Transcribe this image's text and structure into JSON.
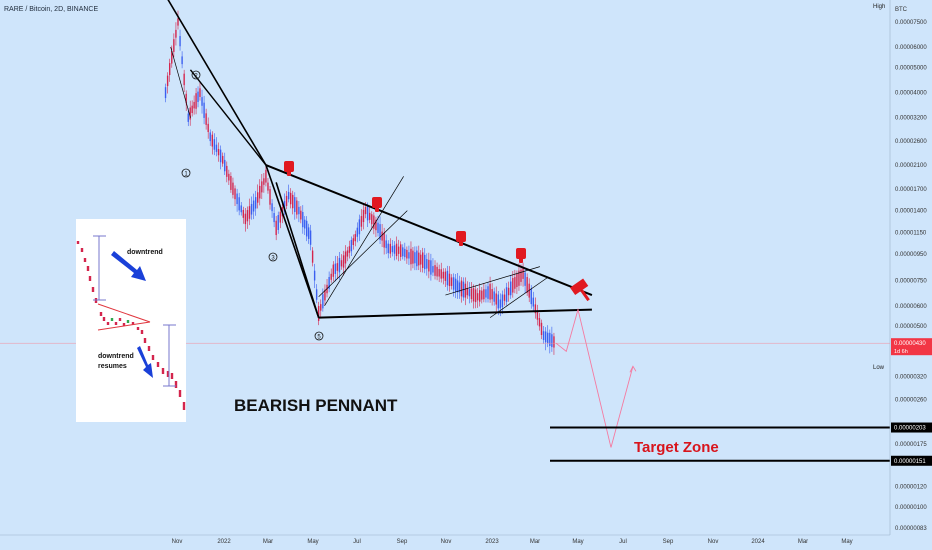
{
  "header": {
    "symbol_title": "RARE / Bitcoin, 2D, BINANCE"
  },
  "price_axis": {
    "currency": "BTC",
    "high_label": "High",
    "low_label": "Low",
    "ticks": [
      "0.00007500",
      "0.00006000",
      "0.00005000",
      "0.00004000",
      "0.00003200",
      "0.00002600",
      "0.00002100",
      "0.00001700",
      "0.00001400",
      "0.00001150",
      "0.00000950",
      "0.00000750",
      "0.00000600",
      "0.00000500",
      "0.00000396",
      "0.00000320",
      "0.00000260",
      "0.00000175",
      "0.00000120",
      "0.00000100",
      "0.00000083"
    ],
    "current_price_tag": "0.00000430",
    "current_price_timer": "1d 6h",
    "target_upper_tag": "0.00000203",
    "target_lower_tag": "0.00000151"
  },
  "time_axis": {
    "ticks": [
      "Nov",
      "2022",
      "Mar",
      "May",
      "Jul",
      "Sep",
      "Nov",
      "2023",
      "Mar",
      "May",
      "Jul",
      "Sep",
      "Nov",
      "2024",
      "Mar",
      "May"
    ]
  },
  "annotations": {
    "pattern_title": "BEARISH PENNANT",
    "target_zone": "Target Zone",
    "wave_labels": [
      "1",
      "2",
      "3",
      "4",
      "5"
    ]
  },
  "inset": {
    "label_top": "downtrend",
    "label_bottom_line1": "downtrend",
    "label_bottom_line2": "resumes"
  },
  "colors": {
    "background": "#cfe5fb",
    "candle_up": "#3a5ff0",
    "candle_down": "#d4254d",
    "price_tag_red": "#f23645",
    "pattern_lines": "#000000",
    "projection": "#f57aa0",
    "target_text": "#d8141c",
    "icon_red": "#e11920"
  },
  "chart_data": {
    "type": "candlestick",
    "title": "RARE / Bitcoin, 2D, BINANCE",
    "series": [
      {
        "name": "RARE/BTC",
        "x": [
          "2021-10-15",
          "2021-11-01",
          "2021-11-15",
          "2021-12-01",
          "2021-12-15",
          "2022-01-01",
          "2022-01-15",
          "2022-02-01",
          "2022-02-15",
          "2022-03-01",
          "2022-03-15",
          "2022-04-01",
          "2022-04-15",
          "2022-05-01",
          "2022-05-12",
          "2022-06-01",
          "2022-06-15",
          "2022-07-01",
          "2022-07-15",
          "2022-08-01",
          "2022-08-15",
          "2022-09-01",
          "2022-09-15",
          "2022-10-01",
          "2022-10-15",
          "2022-11-01",
          "2022-11-15",
          "2022-12-01",
          "2022-12-15",
          "2023-01-01",
          "2023-01-15",
          "2023-02-01",
          "2023-02-15",
          "2023-03-01",
          "2023-03-15",
          "2023-04-01"
        ],
        "y": [
          4e-05,
          7.5e-05,
          3.2e-05,
          4e-05,
          2.7e-05,
          2.2e-05,
          1.7e-05,
          1.3e-05,
          1.5e-05,
          1.9e-05,
          1.2e-05,
          1.6e-05,
          1.4e-05,
          1.1e-05,
          5.6e-06,
          8.2e-06,
          8.9e-06,
          1.1e-05,
          1.4e-05,
          1.2e-05,
          1e-05,
          9.8e-06,
          9.3e-06,
          9e-06,
          8.3e-06,
          7.8e-06,
          7.2e-06,
          6.8e-06,
          6.5e-06,
          6.8e-06,
          6.1e-06,
          7.2e-06,
          8e-06,
          6.2e-06,
          4.6e-06,
          4.3e-06
        ]
      }
    ],
    "projection": {
      "name": "Projected path",
      "x": [
        "2023-04-01",
        "2023-04-15",
        "2023-05-01",
        "2023-06-15",
        "2023-07-15"
      ],
      "y": [
        4.3e-06,
        4e-06,
        5.8e-06,
        1.7e-06,
        3.5e-06
      ]
    },
    "levels": {
      "pennant_upper": [
        [
          "2022-03-01",
          2.1e-05
        ],
        [
          "2023-05-20",
          6.6e-06
        ]
      ],
      "pennant_lower": [
        [
          "2022-05-12",
          5.4e-06
        ],
        [
          "2023-05-20",
          5.8e-06
        ]
      ],
      "target_zone": [
        1.51e-06,
        2.03e-06
      ]
    },
    "y_scale": "log",
    "ylim": [
      8.3e-07,
      9.5e-05
    ],
    "grid": false,
    "legend": "none"
  }
}
